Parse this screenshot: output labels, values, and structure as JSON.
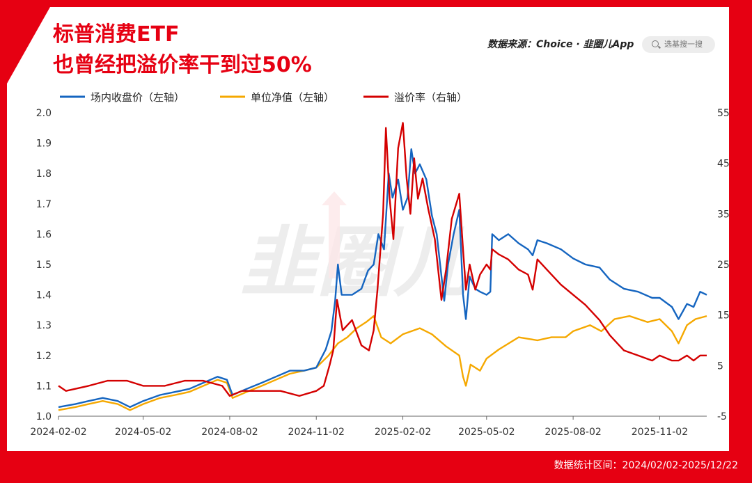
{
  "header": {
    "title_line1": "标普消费ETF",
    "title_line2": "也曾经把溢价率干到过50%",
    "source": "数据来源：Choice · 韭圈儿App",
    "search_placeholder": "选基搜一搜"
  },
  "footer": {
    "range": "数据统计区间：2024/02/02-2025/12/22"
  },
  "colors": {
    "brand_red": "#e60012",
    "close_price": "#1565c0",
    "nav": "#f5a800",
    "premium": "#d40000"
  },
  "chart_data": {
    "type": "line",
    "x_tick_labels": [
      "2024-02-02",
      "2024-05-02",
      "2024-08-02",
      "2024-11-02",
      "2025-02-02",
      "2025-05-02",
      "2025-08-02",
      "2025-11-02"
    ],
    "left_axis": {
      "ylim": [
        1.0,
        2.0
      ],
      "ticks": [
        "1.0",
        "1.1",
        "1.2",
        "1.3",
        "1.4",
        "1.5",
        "1.6",
        "1.7",
        "1.8",
        "1.9",
        "2.0"
      ]
    },
    "right_axis": {
      "ylim": [
        -5,
        55
      ],
      "ticks": [
        "-5",
        "5",
        "15",
        "25",
        "35",
        "45",
        "55"
      ]
    },
    "legend": [
      "场内收盘价（左轴）",
      "单位净值（左轴）",
      "溢价率（右轴）"
    ],
    "series": [
      {
        "name": "场内收盘价（左轴）",
        "axis": "left",
        "color": "#1565c0",
        "points": [
          [
            "2024-02-02",
            1.03
          ],
          [
            "2024-02-20",
            1.04
          ],
          [
            "2024-03-05",
            1.05
          ],
          [
            "2024-03-20",
            1.06
          ],
          [
            "2024-04-05",
            1.05
          ],
          [
            "2024-04-18",
            1.03
          ],
          [
            "2024-05-02",
            1.05
          ],
          [
            "2024-05-20",
            1.07
          ],
          [
            "2024-06-05",
            1.08
          ],
          [
            "2024-06-20",
            1.09
          ],
          [
            "2024-07-05",
            1.11
          ],
          [
            "2024-07-20",
            1.13
          ],
          [
            "2024-07-30",
            1.12
          ],
          [
            "2024-08-05",
            1.07
          ],
          [
            "2024-08-20",
            1.09
          ],
          [
            "2024-09-05",
            1.11
          ],
          [
            "2024-09-20",
            1.13
          ],
          [
            "2024-10-05",
            1.15
          ],
          [
            "2024-10-20",
            1.15
          ],
          [
            "2024-11-02",
            1.16
          ],
          [
            "2024-11-12",
            1.22
          ],
          [
            "2024-11-18",
            1.28
          ],
          [
            "2024-11-22",
            1.38
          ],
          [
            "2024-11-25",
            1.5
          ],
          [
            "2024-11-29",
            1.4
          ],
          [
            "2024-12-10",
            1.4
          ],
          [
            "2024-12-20",
            1.42
          ],
          [
            "2024-12-27",
            1.48
          ],
          [
            "2025-01-02",
            1.5
          ],
          [
            "2025-01-07",
            1.6
          ],
          [
            "2025-01-13",
            1.55
          ],
          [
            "2025-01-18",
            1.8
          ],
          [
            "2025-01-22",
            1.72
          ],
          [
            "2025-01-28",
            1.78
          ],
          [
            "2025-02-02",
            1.68
          ],
          [
            "2025-02-07",
            1.72
          ],
          [
            "2025-02-11",
            1.88
          ],
          [
            "2025-02-15",
            1.8
          ],
          [
            "2025-02-20",
            1.83
          ],
          [
            "2025-02-27",
            1.78
          ],
          [
            "2025-03-05",
            1.66
          ],
          [
            "2025-03-10",
            1.6
          ],
          [
            "2025-03-18",
            1.38
          ],
          [
            "2025-03-22",
            1.5
          ],
          [
            "2025-03-28",
            1.6
          ],
          [
            "2025-04-03",
            1.68
          ],
          [
            "2025-04-07",
            1.4
          ],
          [
            "2025-04-10",
            1.32
          ],
          [
            "2025-04-14",
            1.46
          ],
          [
            "2025-04-20",
            1.42
          ],
          [
            "2025-04-25",
            1.41
          ],
          [
            "2025-05-02",
            1.4
          ],
          [
            "2025-05-06",
            1.41
          ],
          [
            "2025-05-08",
            1.6
          ],
          [
            "2025-05-15",
            1.58
          ],
          [
            "2025-05-25",
            1.6
          ],
          [
            "2025-06-05",
            1.57
          ],
          [
            "2025-06-15",
            1.55
          ],
          [
            "2025-06-20",
            1.53
          ],
          [
            "2025-06-25",
            1.58
          ],
          [
            "2025-07-05",
            1.57
          ],
          [
            "2025-07-20",
            1.55
          ],
          [
            "2025-08-02",
            1.52
          ],
          [
            "2025-08-15",
            1.5
          ],
          [
            "2025-08-30",
            1.49
          ],
          [
            "2025-09-10",
            1.45
          ],
          [
            "2025-09-25",
            1.42
          ],
          [
            "2025-10-10",
            1.41
          ],
          [
            "2025-10-25",
            1.39
          ],
          [
            "2025-11-02",
            1.39
          ],
          [
            "2025-11-15",
            1.36
          ],
          [
            "2025-11-22",
            1.32
          ],
          [
            "2025-12-01",
            1.37
          ],
          [
            "2025-12-08",
            1.36
          ],
          [
            "2025-12-15",
            1.41
          ],
          [
            "2025-12-22",
            1.4
          ]
        ]
      },
      {
        "name": "单位净值（左轴）",
        "axis": "left",
        "color": "#f5a800",
        "points": [
          [
            "2024-02-02",
            1.02
          ],
          [
            "2024-02-20",
            1.03
          ],
          [
            "2024-03-05",
            1.04
          ],
          [
            "2024-03-20",
            1.05
          ],
          [
            "2024-04-05",
            1.04
          ],
          [
            "2024-04-18",
            1.02
          ],
          [
            "2024-05-02",
            1.04
          ],
          [
            "2024-05-20",
            1.06
          ],
          [
            "2024-06-05",
            1.07
          ],
          [
            "2024-06-20",
            1.08
          ],
          [
            "2024-07-05",
            1.1
          ],
          [
            "2024-07-20",
            1.12
          ],
          [
            "2024-07-30",
            1.11
          ],
          [
            "2024-08-05",
            1.06
          ],
          [
            "2024-08-20",
            1.08
          ],
          [
            "2024-09-05",
            1.1
          ],
          [
            "2024-09-20",
            1.12
          ],
          [
            "2024-10-05",
            1.14
          ],
          [
            "2024-10-20",
            1.15
          ],
          [
            "2024-11-02",
            1.16
          ],
          [
            "2024-11-15",
            1.2
          ],
          [
            "2024-11-25",
            1.24
          ],
          [
            "2024-12-05",
            1.26
          ],
          [
            "2024-12-15",
            1.29
          ],
          [
            "2024-12-25",
            1.31
          ],
          [
            "2025-01-02",
            1.33
          ],
          [
            "2025-01-10",
            1.26
          ],
          [
            "2025-01-20",
            1.24
          ],
          [
            "2025-02-02",
            1.27
          ],
          [
            "2025-02-20",
            1.29
          ],
          [
            "2025-03-05",
            1.27
          ],
          [
            "2025-03-20",
            1.23
          ],
          [
            "2025-04-03",
            1.2
          ],
          [
            "2025-04-07",
            1.13
          ],
          [
            "2025-04-10",
            1.1
          ],
          [
            "2025-04-15",
            1.17
          ],
          [
            "2025-04-25",
            1.15
          ],
          [
            "2025-05-02",
            1.19
          ],
          [
            "2025-05-15",
            1.22
          ],
          [
            "2025-06-05",
            1.26
          ],
          [
            "2025-06-25",
            1.25
          ],
          [
            "2025-07-10",
            1.26
          ],
          [
            "2025-07-25",
            1.26
          ],
          [
            "2025-08-02",
            1.28
          ],
          [
            "2025-08-20",
            1.3
          ],
          [
            "2025-09-01",
            1.28
          ],
          [
            "2025-09-15",
            1.32
          ],
          [
            "2025-10-01",
            1.33
          ],
          [
            "2025-10-20",
            1.31
          ],
          [
            "2025-11-02",
            1.32
          ],
          [
            "2025-11-15",
            1.28
          ],
          [
            "2025-11-22",
            1.24
          ],
          [
            "2025-12-01",
            1.3
          ],
          [
            "2025-12-10",
            1.32
          ],
          [
            "2025-12-22",
            1.33
          ]
        ]
      },
      {
        "name": "溢价率（右轴）",
        "axis": "right",
        "color": "#d40000",
        "points": [
          [
            "2024-02-02",
            1
          ],
          [
            "2024-02-10",
            0
          ],
          [
            "2024-03-05",
            1
          ],
          [
            "2024-03-25",
            2
          ],
          [
            "2024-04-15",
            2
          ],
          [
            "2024-05-02",
            1
          ],
          [
            "2024-05-25",
            1
          ],
          [
            "2024-06-15",
            2
          ],
          [
            "2024-07-05",
            2
          ],
          [
            "2024-07-25",
            1
          ],
          [
            "2024-08-02",
            -1
          ],
          [
            "2024-08-15",
            0
          ],
          [
            "2024-09-05",
            0
          ],
          [
            "2024-09-25",
            0
          ],
          [
            "2024-10-15",
            -1
          ],
          [
            "2024-11-02",
            0
          ],
          [
            "2024-11-10",
            1
          ],
          [
            "2024-11-16",
            5
          ],
          [
            "2024-11-20",
            8
          ],
          [
            "2024-11-24",
            18
          ],
          [
            "2024-11-30",
            12
          ],
          [
            "2024-12-10",
            14
          ],
          [
            "2024-12-20",
            9
          ],
          [
            "2024-12-28",
            8
          ],
          [
            "2025-01-02",
            12
          ],
          [
            "2025-01-06",
            20
          ],
          [
            "2025-01-12",
            35
          ],
          [
            "2025-01-15",
            52
          ],
          [
            "2025-01-19",
            38
          ],
          [
            "2025-01-23",
            30
          ],
          [
            "2025-01-28",
            48
          ],
          [
            "2025-02-02",
            53
          ],
          [
            "2025-02-06",
            42
          ],
          [
            "2025-02-10",
            35
          ],
          [
            "2025-02-14",
            46
          ],
          [
            "2025-02-18",
            38
          ],
          [
            "2025-02-23",
            42
          ],
          [
            "2025-03-01",
            36
          ],
          [
            "2025-03-08",
            30
          ],
          [
            "2025-03-15",
            18
          ],
          [
            "2025-03-20",
            24
          ],
          [
            "2025-03-26",
            34
          ],
          [
            "2025-04-03",
            39
          ],
          [
            "2025-04-07",
            28
          ],
          [
            "2025-04-10",
            20
          ],
          [
            "2025-04-14",
            25
          ],
          [
            "2025-04-20",
            20
          ],
          [
            "2025-04-25",
            23
          ],
          [
            "2025-05-02",
            25
          ],
          [
            "2025-05-06",
            24
          ],
          [
            "2025-05-08",
            28
          ],
          [
            "2025-05-15",
            27
          ],
          [
            "2025-05-25",
            26
          ],
          [
            "2025-06-05",
            24
          ],
          [
            "2025-06-15",
            23
          ],
          [
            "2025-06-20",
            20
          ],
          [
            "2025-06-25",
            26
          ],
          [
            "2025-07-05",
            24
          ],
          [
            "2025-07-20",
            21
          ],
          [
            "2025-08-02",
            19
          ],
          [
            "2025-08-15",
            17
          ],
          [
            "2025-08-30",
            14
          ],
          [
            "2025-09-10",
            11
          ],
          [
            "2025-09-25",
            8
          ],
          [
            "2025-10-10",
            7
          ],
          [
            "2025-10-25",
            6
          ],
          [
            "2025-11-02",
            7
          ],
          [
            "2025-11-15",
            6
          ],
          [
            "2025-11-22",
            6
          ],
          [
            "2025-12-01",
            7
          ],
          [
            "2025-12-08",
            6
          ],
          [
            "2025-12-15",
            7
          ],
          [
            "2025-12-22",
            7
          ]
        ]
      }
    ]
  }
}
